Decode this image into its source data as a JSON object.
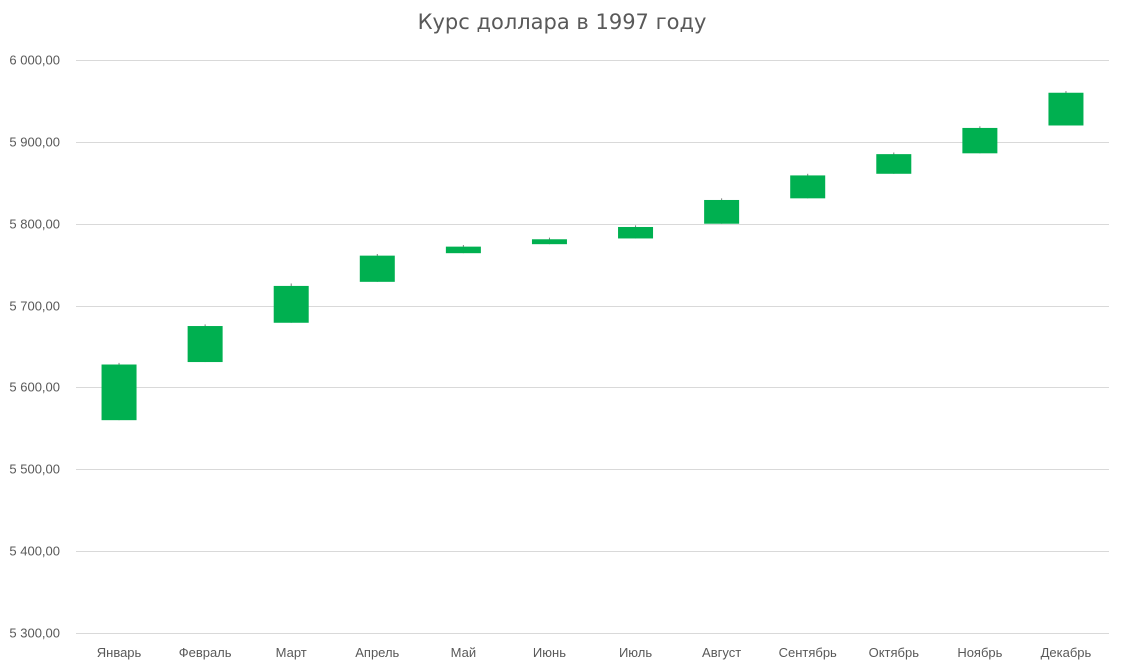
{
  "chart_data": {
    "type": "candlestick",
    "title": "Курс доллара в 1997 году",
    "xlabel": "",
    "ylabel": "",
    "ylim": [
      5300,
      6000
    ],
    "ytick_values": [
      5300,
      5400,
      5500,
      5600,
      5700,
      5800,
      5900,
      6000
    ],
    "ytick_labels": [
      "5 300,00",
      "5 400,00",
      "5 500,00",
      "5 600,00",
      "5 700,00",
      "5 800,00",
      "5 900,00",
      "6 000,00"
    ],
    "grid": true,
    "legend": "none",
    "up_color": "#00b050",
    "categories": [
      "Январь",
      "Февраль",
      "Март",
      "Апрель",
      "Май",
      "Июнь",
      "Июль",
      "Август",
      "Сентябрь",
      "Октябрь",
      "Ноябрь",
      "Декабрь"
    ],
    "open": [
      5560,
      5631,
      5679,
      5729,
      5764,
      5775,
      5782,
      5800,
      5831,
      5861,
      5886,
      5920
    ],
    "close": [
      5628,
      5675,
      5724,
      5761,
      5772,
      5781,
      5796,
      5829,
      5859,
      5885,
      5917,
      5960
    ],
    "low": [
      5560,
      5631,
      5679,
      5729,
      5764,
      5775,
      5782,
      5800,
      5831,
      5861,
      5886,
      5920
    ],
    "high": [
      5630,
      5677,
      5727,
      5763,
      5774,
      5783,
      5798,
      5831,
      5861,
      5887,
      5919,
      5962
    ]
  }
}
